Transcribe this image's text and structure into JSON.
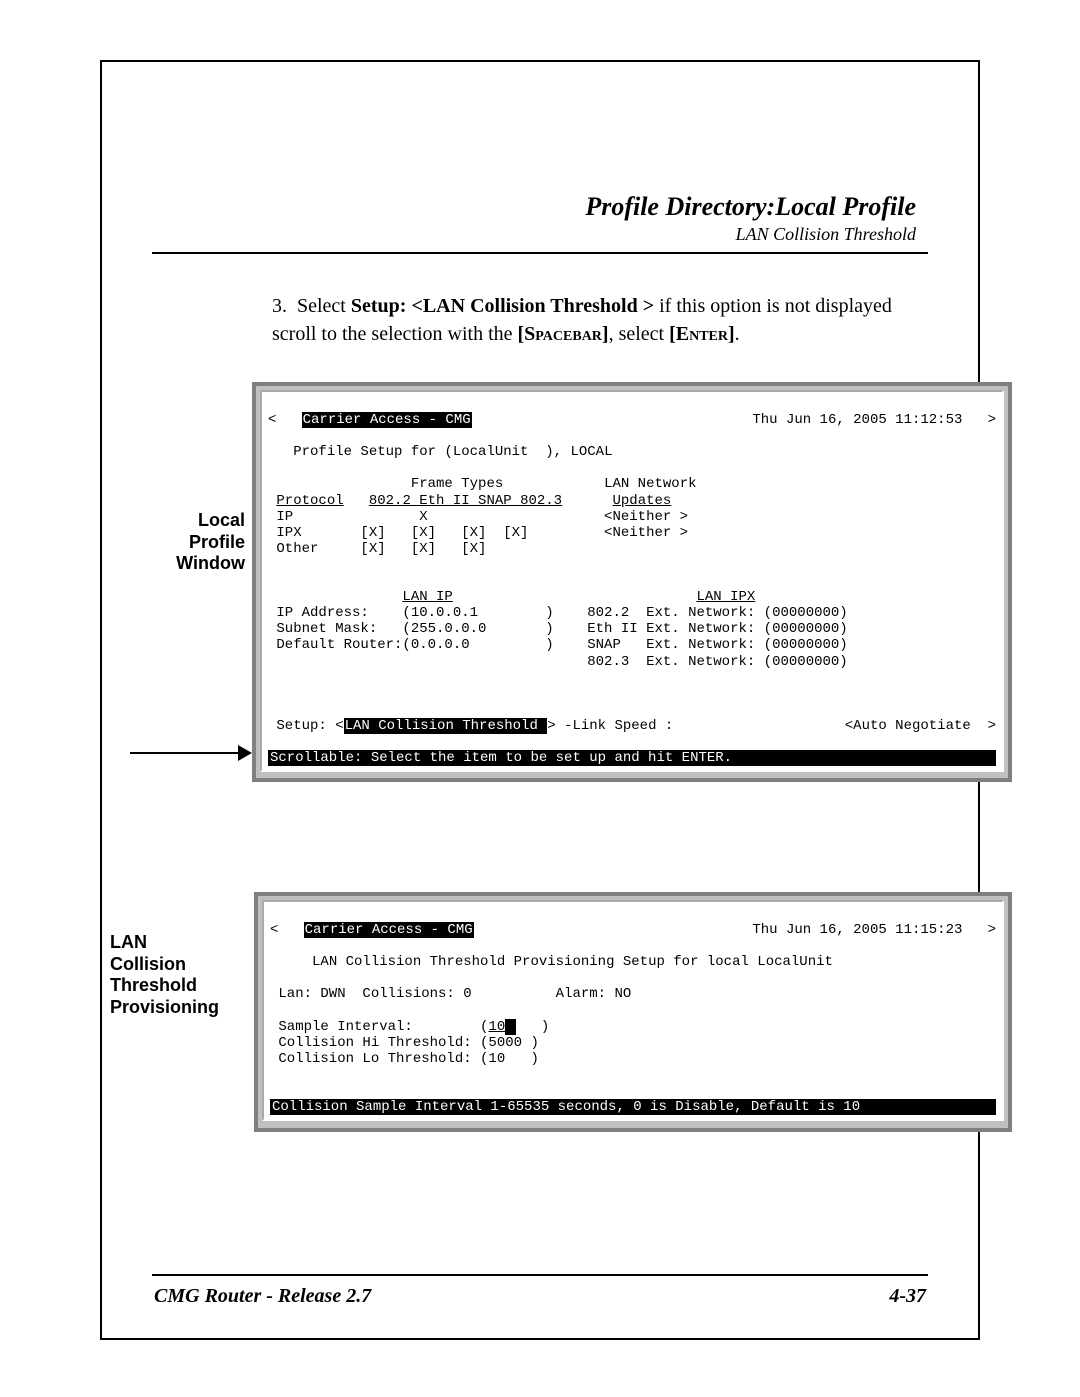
{
  "header": {
    "title": "Profile Directory:Local Profile",
    "subtitle": "LAN Collision Threshold"
  },
  "instruction": {
    "number": "3.",
    "prefix": "Select ",
    "bold1": "Setup: <LAN Collision Threshold >",
    "mid1": " if this option is not displayed scroll to the selection with the ",
    "key1": "[Spacebar]",
    "mid2": ", select ",
    "key2": "[Enter]",
    "suffix": "."
  },
  "label1": "Local\nProfile\nWindow",
  "label2": "LAN\nCollision\nThreshold\nProvisioning",
  "terminal1": {
    "title_inv": "Carrier Access - CMG",
    "datetime": "Thu Jun 16, 2005 11:12:53",
    "line_profile": "Profile Setup for (LocalUnit  ), LOCAL",
    "frame_types_hdr": "Frame Types",
    "lan_net_hdr": "LAN Network",
    "protocol_u": "Protocol",
    "cols_u": "802.2 Eth II SNAP 802.3",
    "updates_u": "Updates",
    "row_ip": "IP               X                     <Neither >",
    "row_ipx": "IPX       [X]   [X]   [X]  [X]         <Neither >",
    "row_other": "Other     [X]   [X]   [X]",
    "lan_ip_u": "LAN IP",
    "lan_ipx_u": "LAN IPX",
    "ip_addr": "IP Address:    (10.0.0.1        )    802.2  Ext. Network: (00000000)",
    "subnet": "Subnet Mask:   (255.0.0.0       )    Eth II Ext. Network: (00000000)",
    "defroute": "Default Router:(0.0.0.0         )    SNAP   Ext. Network: (00000000)",
    "ext8023": "                                     802.3  Ext. Network: (00000000)",
    "setup_pre": "Setup: <",
    "setup_inv": "LAN Collision Threshold ",
    "setup_post": "> -Link Speed :",
    "auto_neg": "<Auto Negotiate  >",
    "bottom_bar": "Scrollable: Select the item to be set up and hit ENTER."
  },
  "terminal2": {
    "title_inv": "Carrier Access - CMG",
    "datetime": "Thu Jun 16, 2005 11:15:23",
    "line_title": "LAN Collision Threshold Provisioning Setup for local LocalUnit",
    "status": " Lan: DWN  Collisions: 0          Alarm: NO",
    "sample_pre": " Sample Interval:        (",
    "sample_u": "10",
    "sample_post": "   )",
    "hi": " Collision Hi Threshold: (5000 )",
    "lo": " Collision Lo Threshold: (10   )",
    "bottom_bar": "Collision Sample Interval 1-65535 seconds, 0 is Disable, Default is 10"
  },
  "footer": {
    "left": "CMG Router - Release 2.7",
    "right": "4-37"
  }
}
